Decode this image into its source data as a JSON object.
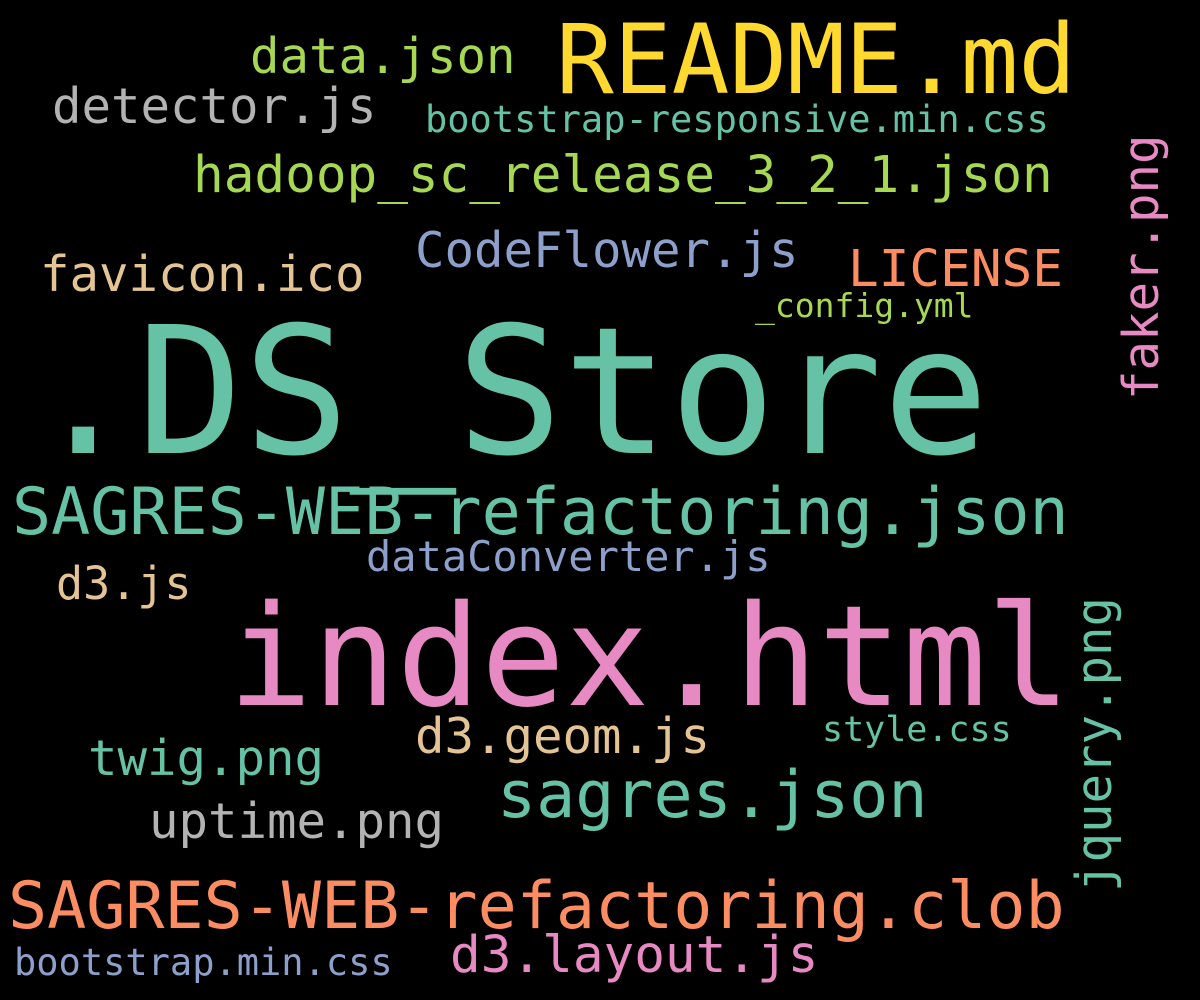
{
  "background": "#000000",
  "palette": {
    "teal": "#66c2a5",
    "orange": "#fc8d62",
    "lavender": "#8da0cb",
    "pink": "#e78ac3",
    "lime": "#a6d854",
    "yellow": "#ffd92f",
    "tan": "#e5c494",
    "gray": "#b3b3b3"
  },
  "words": {
    "readme": "README.md",
    "ds_store": ".DS_Store",
    "index_html": "index.html",
    "sagres_web_json": "SAGRES-WEB-refactoring.json",
    "sagres_web_clob": "SAGRES-WEB-refactoring.clob",
    "sagres_json": "sagres.json",
    "data_json": "data.json",
    "detector_js": "detector.js",
    "bootstrap_responsive": "bootstrap-responsive.min.css",
    "hadoop_json": "hadoop_sc_release_3_2_1.json",
    "faker_png": "faker.png",
    "codeflower_js": "CodeFlower.js",
    "license": "LICENSE",
    "favicon": "favicon.ico",
    "config_yml": "_config.yml",
    "dataconverter_js": "dataConverter.js",
    "d3_js": "d3.js",
    "jquery_png": "jquery.png",
    "d3_geom_js": "d3.geom.js",
    "style_css": "style.css",
    "twig_png": "twig.png",
    "uptime_png": "uptime.png",
    "bootstrap_min_css": "bootstrap.min.css",
    "d3_layout_js": "d3.layout.js"
  }
}
